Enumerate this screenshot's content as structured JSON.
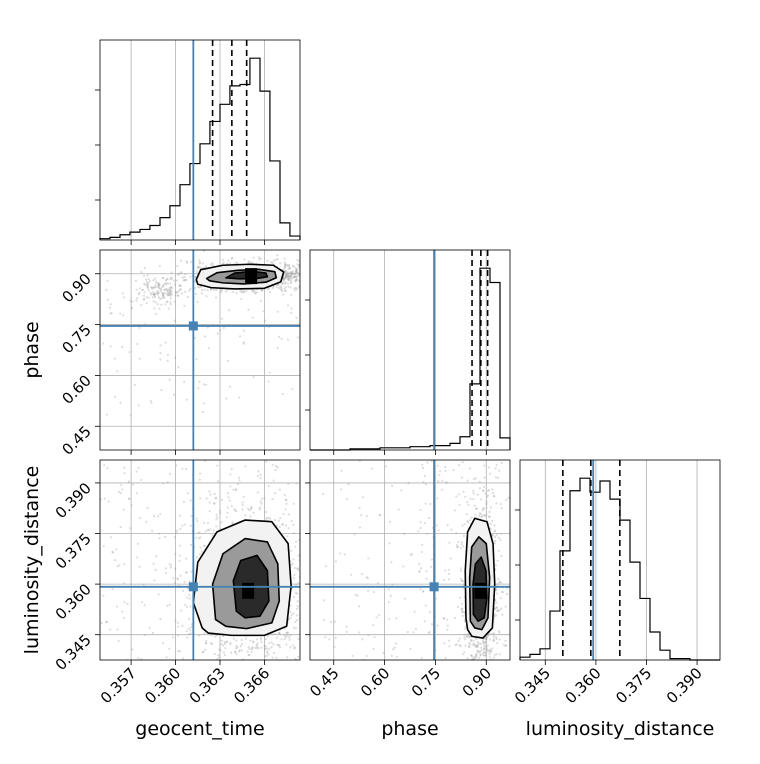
{
  "chart_data": {
    "type": "corner",
    "parameters": [
      "geocent_time",
      "phase",
      "luminosity_distance"
    ],
    "truths": {
      "geocent_time": 0.3612,
      "phase": 0.746,
      "luminosity_distance": 0.3592
    },
    "colors": {
      "truth": "#4682b4",
      "hist": "#000000",
      "grid": "#b0b0b0",
      "points": "#9e9e9e",
      "quantile": "#000000"
    },
    "grid": true,
    "axes": {
      "geocent_time": {
        "range": [
          0.3549,
          0.3684
        ],
        "ticks": [
          0.357,
          0.36,
          0.363,
          0.366
        ],
        "tick_labels": [
          "0.357",
          "0.360",
          "0.363",
          "0.366"
        ]
      },
      "phase": {
        "range": [
          0.38,
          0.97
        ],
        "ticks": [
          0.45,
          0.6,
          0.75,
          0.9
        ],
        "tick_labels": [
          "0.45",
          "0.60",
          "0.75",
          "0.90"
        ]
      },
      "luminosity_distance": {
        "range": [
          0.3375,
          0.3968
        ],
        "ticks": [
          0.345,
          0.36,
          0.375,
          0.39
        ],
        "tick_labels": [
          "0.345",
          "0.360",
          "0.375",
          "0.390"
        ]
      }
    },
    "histograms": [
      {
        "parameter": "geocent_time",
        "bin_edges": [
          0.3549,
          0.35557,
          0.35625,
          0.35692,
          0.3576,
          0.35827,
          0.35895,
          0.35962,
          0.3603,
          0.36097,
          0.36165,
          0.36232,
          0.363,
          0.36367,
          0.36435,
          0.36502,
          0.3657,
          0.36637,
          0.36705,
          0.36772,
          0.3684
        ],
        "counts": [
          1,
          2,
          4,
          6,
          8,
          11,
          17,
          26,
          42,
          58,
          73,
          90,
          103,
          117,
          118,
          138,
          113,
          60,
          13,
          3
        ],
        "quantiles": [
          0.3625,
          0.3638,
          0.3648
        ]
      },
      {
        "parameter": "phase",
        "bin_edges": [
          0.38,
          0.4095,
          0.439,
          0.4685,
          0.498,
          0.5275,
          0.557,
          0.5865,
          0.616,
          0.6455,
          0.675,
          0.7045,
          0.734,
          0.7635,
          0.793,
          0.8225,
          0.852,
          0.8815,
          0.911,
          0.9405,
          0.97
        ],
        "counts": [
          0,
          0,
          0,
          0,
          1,
          1,
          1,
          2,
          2,
          2,
          3,
          3,
          4,
          4,
          6,
          12,
          60,
          165,
          152,
          11
        ],
        "quantiles": [
          0.858,
          0.884,
          0.904
        ]
      },
      {
        "parameter": "luminosity_distance",
        "bin_edges": [
          0.3375,
          0.34046,
          0.34343,
          0.34639,
          0.34936,
          0.35232,
          0.35529,
          0.35825,
          0.36122,
          0.36418,
          0.36715,
          0.37011,
          0.37308,
          0.37604,
          0.37901,
          0.38197,
          0.38494,
          0.3879,
          0.39087,
          0.39383,
          0.3968
        ],
        "counts": [
          2,
          4,
          8,
          35,
          78,
          121,
          130,
          120,
          128,
          115,
          100,
          70,
          44,
          20,
          7,
          1,
          1,
          0,
          0,
          0
        ],
        "quantiles": [
          0.3502,
          0.3585,
          0.3671
        ]
      }
    ],
    "scatter_panels": [
      {
        "x_param": "geocent_time",
        "y_param": "phase",
        "density_peak": {
          "x": 0.3651,
          "y": 0.893
        },
        "contours": [
          [
            [
              0.3614,
              0.883
            ],
            [
              0.3617,
              0.912
            ],
            [
              0.3632,
              0.925
            ],
            [
              0.365,
              0.928
            ],
            [
              0.3666,
              0.925
            ],
            [
              0.3673,
              0.905
            ],
            [
              0.3671,
              0.876
            ],
            [
              0.366,
              0.857
            ],
            [
              0.364,
              0.855
            ],
            [
              0.3624,
              0.859
            ],
            [
              0.3615,
              0.869
            ]
          ],
          [
            [
              0.3621,
              0.886
            ],
            [
              0.3628,
              0.903
            ],
            [
              0.3642,
              0.91
            ],
            [
              0.3656,
              0.913
            ],
            [
              0.3667,
              0.906
            ],
            [
              0.3668,
              0.888
            ],
            [
              0.3661,
              0.875
            ],
            [
              0.3646,
              0.87
            ],
            [
              0.3632,
              0.873
            ],
            [
              0.3623,
              0.879
            ]
          ],
          [
            [
              0.3634,
              0.888
            ],
            [
              0.364,
              0.902
            ],
            [
              0.3652,
              0.907
            ],
            [
              0.3661,
              0.902
            ],
            [
              0.3662,
              0.891
            ],
            [
              0.3655,
              0.886
            ],
            [
              0.3643,
              0.885
            ]
          ]
        ]
      },
      {
        "x_param": "geocent_time",
        "y_param": "luminosity_distance",
        "density_peak": {
          "x": 0.3649,
          "y": 0.358
        },
        "contours": [
          [
            [
              0.3618,
              0.347
            ],
            [
              0.3612,
              0.3545
            ],
            [
              0.3615,
              0.3665
            ],
            [
              0.3628,
              0.3755
            ],
            [
              0.3647,
              0.379
            ],
            [
              0.3665,
              0.3785
            ],
            [
              0.3676,
              0.372
            ],
            [
              0.3678,
              0.3595
            ],
            [
              0.3675,
              0.3475
            ],
            [
              0.366,
              0.3448
            ],
            [
              0.3638,
              0.3448
            ],
            [
              0.3622,
              0.3455
            ]
          ],
          [
            [
              0.3627,
              0.3495
            ],
            [
              0.3625,
              0.36
            ],
            [
              0.3632,
              0.369
            ],
            [
              0.3647,
              0.3735
            ],
            [
              0.3662,
              0.3725
            ],
            [
              0.3669,
              0.366
            ],
            [
              0.367,
              0.355
            ],
            [
              0.3665,
              0.3485
            ],
            [
              0.3648,
              0.3468
            ],
            [
              0.3634,
              0.3475
            ]
          ],
          [
            [
              0.3641,
              0.352
            ],
            [
              0.3639,
              0.361
            ],
            [
              0.3644,
              0.367
            ],
            [
              0.3655,
              0.3685
            ],
            [
              0.3662,
              0.364
            ],
            [
              0.3663,
              0.355
            ],
            [
              0.3657,
              0.3505
            ],
            [
              0.3647,
              0.35
            ]
          ]
        ]
      },
      {
        "x_param": "phase",
        "y_param": "luminosity_distance",
        "density_peak": {
          "x": 0.883,
          "y": 0.358
        },
        "contours": [
          [
            [
              0.84,
              0.35
            ],
            [
              0.838,
              0.364
            ],
            [
              0.845,
              0.3755
            ],
            [
              0.866,
              0.3795
            ],
            [
              0.902,
              0.3785
            ],
            [
              0.92,
              0.372
            ],
            [
              0.925,
              0.36
            ],
            [
              0.918,
              0.347
            ],
            [
              0.89,
              0.344
            ],
            [
              0.858,
              0.3445
            ],
            [
              0.845,
              0.3465
            ]
          ],
          [
            [
              0.853,
              0.349
            ],
            [
              0.851,
              0.362
            ],
            [
              0.857,
              0.371
            ],
            [
              0.878,
              0.374
            ],
            [
              0.9,
              0.372
            ],
            [
              0.91,
              0.362
            ],
            [
              0.905,
              0.35
            ],
            [
              0.887,
              0.3465
            ],
            [
              0.866,
              0.347
            ]
          ],
          [
            [
              0.862,
              0.351
            ],
            [
              0.861,
              0.36
            ],
            [
              0.868,
              0.366
            ],
            [
              0.885,
              0.368
            ],
            [
              0.899,
              0.364
            ],
            [
              0.902,
              0.356
            ],
            [
              0.894,
              0.35
            ],
            [
              0.876,
              0.349
            ]
          ]
        ]
      }
    ],
    "xlabels": [
      "geocent_time",
      "phase",
      "luminosity_distance"
    ],
    "ylabels": [
      "phase",
      "luminosity_distance"
    ]
  }
}
